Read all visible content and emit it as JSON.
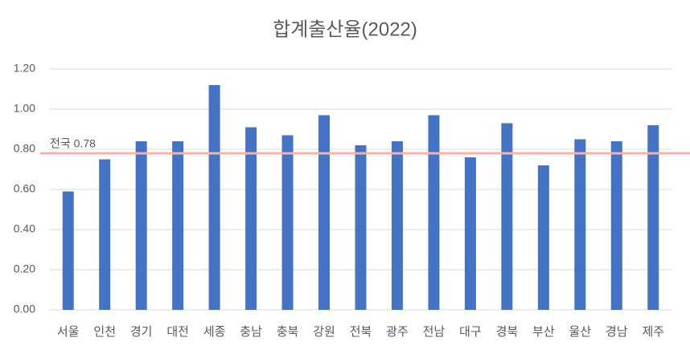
{
  "chart_data": {
    "type": "bar",
    "title": "합계출산율(2022)",
    "categories": [
      "서울",
      "인천",
      "경기",
      "대전",
      "세종",
      "충남",
      "충북",
      "강원",
      "전북",
      "광주",
      "전남",
      "대구",
      "경북",
      "부산",
      "울산",
      "경남",
      "제주"
    ],
    "values": [
      0.59,
      0.75,
      0.84,
      0.84,
      1.12,
      0.91,
      0.87,
      0.97,
      0.82,
      0.84,
      0.97,
      0.76,
      0.93,
      0.72,
      0.85,
      0.84,
      0.92
    ],
    "color": "#4472c4",
    "ylim": [
      0,
      1.2
    ],
    "yticks": [
      {
        "value": 0,
        "label": "0.00"
      },
      {
        "value": 0.2,
        "label": "0.20"
      },
      {
        "value": 0.4,
        "label": "0.40"
      },
      {
        "value": 0.6,
        "label": "0.60"
      },
      {
        "value": 0.8,
        "label": "0.80"
      },
      {
        "value": 1.0,
        "label": "1.00"
      },
      {
        "value": 1.2,
        "label": "1.20"
      }
    ],
    "grid": true,
    "reference_line": {
      "value": 0.78,
      "label": "전국 0.78",
      "color": "#f4b3a4"
    }
  }
}
